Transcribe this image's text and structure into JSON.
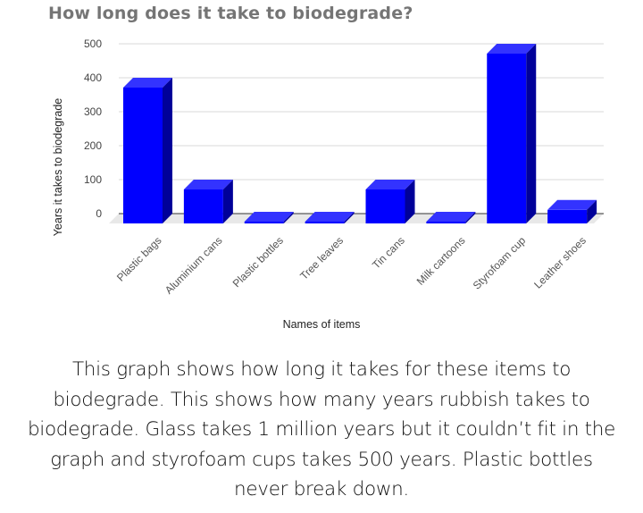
{
  "chart_data": {
    "type": "bar",
    "style": "3d-column",
    "title": "How long does it take to biodegrade?",
    "xlabel": "Names of items",
    "ylabel": "Years it takes to biodegrade",
    "categories": [
      "Plastic bags",
      "Aluminium cans",
      "Plastic bottles",
      "Tree leaves",
      "Tin cans",
      "Milk cartoons",
      "Styrofoam cup",
      "Leather shoes"
    ],
    "values": [
      400,
      100,
      0,
      0,
      100,
      5,
      500,
      40
    ],
    "yticks": [
      "500",
      "400",
      "300",
      "200",
      "100",
      "0"
    ],
    "ylim": [
      0,
      500
    ],
    "grid": true,
    "legend": "none",
    "colors": {
      "bar_front": "#0000FF",
      "bar_top": "#3333FF",
      "bar_side": "#000099",
      "floor": "#E8E8E8",
      "grid": "#D9D9D9"
    }
  },
  "caption": {
    "lines": [
      "This graph shows how long it takes for these items to",
      "biodegrade. This shows how many years rubbish takes to",
      "biodegrade. Glass takes 1 million years but it couldn’t fit in the",
      "graph and styrofoam cups takes 500 years. Plastic bottles",
      "never break down."
    ]
  }
}
